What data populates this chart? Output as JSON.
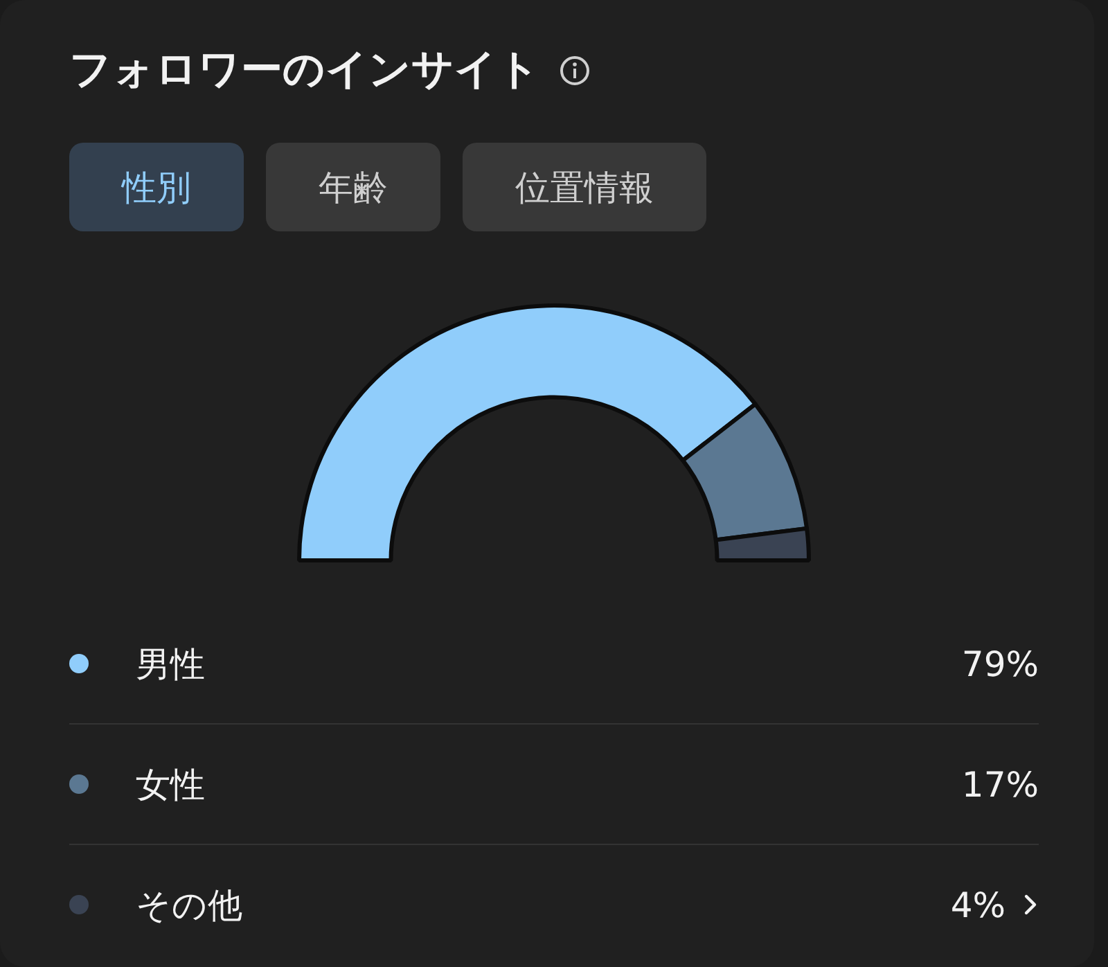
{
  "chart_data": {
    "type": "donut",
    "title": "フォロワーのインサイト",
    "annotations": [
      "性別",
      "年齢",
      "位置情報"
    ],
    "categories": [
      "男性",
      "女性",
      "その他"
    ],
    "values": [
      79,
      17,
      4
    ],
    "value_labels": [
      "79%",
      "17%",
      "4%"
    ],
    "colors": [
      "#90cdfb",
      "#5b7892",
      "#3a4353"
    ],
    "legend": "bottom"
  }
}
